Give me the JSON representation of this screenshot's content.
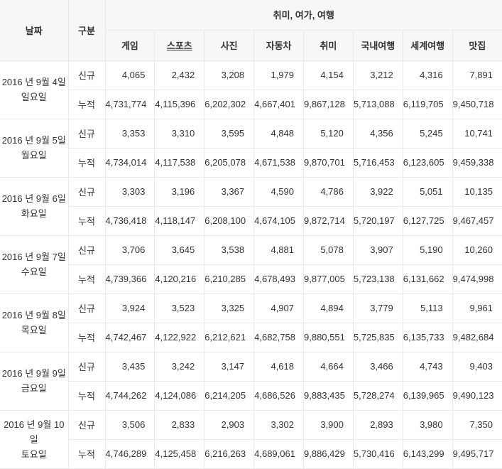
{
  "chart_data": {
    "type": "table",
    "title": "취미, 여가, 여행",
    "corner_headers": [
      "날짜",
      "구분"
    ],
    "columns": [
      "게임",
      "스포츠",
      "사진",
      "자동차",
      "취미",
      "국내여행",
      "세계여행",
      "맛집"
    ],
    "underlined_column_index": 1,
    "row_types": [
      "신규",
      "누적"
    ],
    "groups": [
      {
        "date": "2016 년 9월 4일",
        "weekday": "일요일",
        "new": [
          "4,065",
          "2,432",
          "3,208",
          "1,979",
          "4,154",
          "3,212",
          "4,316",
          "7,891"
        ],
        "cumulative": [
          "4,731,774",
          "4,115,396",
          "6,202,302",
          "4,667,401",
          "9,867,128",
          "5,713,088",
          "6,119,705",
          "9,450,718"
        ]
      },
      {
        "date": "2016 년 9월 5일",
        "weekday": "월요일",
        "new": [
          "3,353",
          "3,310",
          "3,595",
          "4,848",
          "5,120",
          "4,356",
          "5,245",
          "10,741"
        ],
        "cumulative": [
          "4,734,014",
          "4,117,538",
          "6,205,078",
          "4,671,538",
          "9,870,701",
          "5,716,453",
          "6,123,605",
          "9,459,338"
        ]
      },
      {
        "date": "2016 년 9월 6일",
        "weekday": "화요일",
        "new": [
          "3,303",
          "3,196",
          "3,367",
          "4,590",
          "4,786",
          "3,922",
          "5,051",
          "10,135"
        ],
        "cumulative": [
          "4,736,418",
          "4,118,147",
          "6,208,100",
          "4,674,105",
          "9,872,714",
          "5,720,197",
          "6,127,725",
          "9,467,457"
        ]
      },
      {
        "date": "2016 년 9월 7일",
        "weekday": "수요일",
        "new": [
          "3,706",
          "3,645",
          "3,538",
          "4,881",
          "5,078",
          "3,907",
          "5,190",
          "10,260"
        ],
        "cumulative": [
          "4,739,366",
          "4,120,216",
          "6,210,285",
          "4,678,493",
          "9,877,005",
          "5,723,138",
          "6,131,662",
          "9,474,998"
        ]
      },
      {
        "date": "2016 년 9월 8일",
        "weekday": "목요일",
        "new": [
          "3,924",
          "3,523",
          "3,325",
          "4,907",
          "4,894",
          "3,779",
          "5,113",
          "9,961"
        ],
        "cumulative": [
          "4,742,467",
          "4,122,922",
          "6,212,621",
          "4,682,758",
          "9,880,551",
          "5,725,835",
          "6,135,733",
          "9,482,684"
        ]
      },
      {
        "date": "2016 년 9월 9일",
        "weekday": "금요일",
        "new": [
          "3,435",
          "3,242",
          "3,147",
          "4,618",
          "4,664",
          "3,466",
          "4,743",
          "9,403"
        ],
        "cumulative": [
          "4,744,262",
          "4,124,086",
          "6,214,205",
          "4,686,526",
          "9,883,435",
          "5,728,274",
          "6,139,965",
          "9,490,123"
        ]
      },
      {
        "date": "2016 년 9월 10일",
        "weekday": "토요일",
        "new": [
          "3,506",
          "2,833",
          "2,903",
          "3,302",
          "3,900",
          "2,893",
          "3,980",
          "7,350"
        ],
        "cumulative": [
          "4,746,289",
          "4,125,458",
          "6,216,263",
          "4,689,061",
          "9,886,429",
          "5,730,416",
          "6,143,299",
          "9,495,717"
        ]
      }
    ]
  },
  "colors": {
    "header_bg": "#f7f7f7",
    "border": "#e9e9e9",
    "border_strong": "#dddddd",
    "text": "#333333",
    "bg": "#ffffff"
  }
}
